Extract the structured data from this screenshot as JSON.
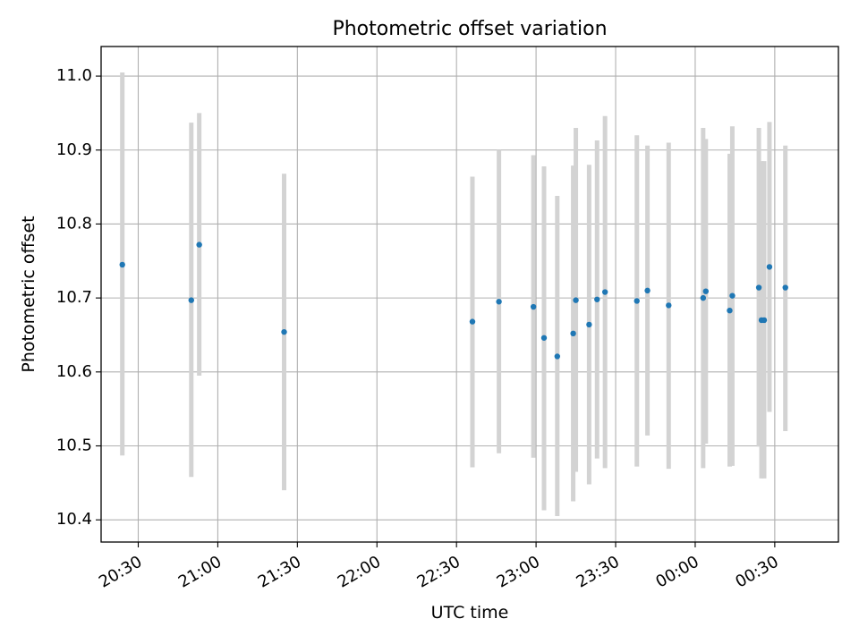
{
  "chart_data": {
    "type": "scatter",
    "title": "Photometric offset variation",
    "xlabel": "UTC time",
    "ylabel": "Photometric offset",
    "xlim": [
      "20:16",
      "00:54"
    ],
    "ylim": [
      10.37,
      11.04
    ],
    "x_ticks": [
      "20:30",
      "21:00",
      "21:30",
      "22:00",
      "22:30",
      "23:00",
      "23:30",
      "00:00",
      "00:30"
    ],
    "y_ticks": [
      "10.4",
      "10.5",
      "10.6",
      "10.7",
      "10.8",
      "10.9",
      "11.0"
    ],
    "grid": true,
    "colors": {
      "marker": "#1f77b4",
      "errorbar": "#d3d3d3",
      "grid": "#b0b0b0"
    },
    "points": [
      {
        "x": "20:24",
        "y": 10.745,
        "low": 10.487,
        "high": 11.005
      },
      {
        "x": "20:50",
        "y": 10.697,
        "low": 10.458,
        "high": 10.937
      },
      {
        "x": "20:53",
        "y": 10.772,
        "low": 10.595,
        "high": 10.95
      },
      {
        "x": "21:25",
        "y": 10.654,
        "low": 10.44,
        "high": 10.868
      },
      {
        "x": "22:36",
        "y": 10.668,
        "low": 10.471,
        "high": 10.864
      },
      {
        "x": "22:46",
        "y": 10.695,
        "low": 10.49,
        "high": 10.9
      },
      {
        "x": "22:59",
        "y": 10.688,
        "low": 10.484,
        "high": 10.893
      },
      {
        "x": "23:03",
        "y": 10.646,
        "low": 10.413,
        "high": 10.878
      },
      {
        "x": "23:08",
        "y": 10.621,
        "low": 10.405,
        "high": 10.838
      },
      {
        "x": "23:14",
        "y": 10.652,
        "low": 10.425,
        "high": 10.879
      },
      {
        "x": "23:15",
        "y": 10.697,
        "low": 10.465,
        "high": 10.93
      },
      {
        "x": "23:20",
        "y": 10.664,
        "low": 10.448,
        "high": 10.88
      },
      {
        "x": "23:23",
        "y": 10.698,
        "low": 10.483,
        "high": 10.913
      },
      {
        "x": "23:26",
        "y": 10.708,
        "low": 10.47,
        "high": 10.946
      },
      {
        "x": "23:38",
        "y": 10.696,
        "low": 10.472,
        "high": 10.92
      },
      {
        "x": "23:42",
        "y": 10.71,
        "low": 10.514,
        "high": 10.906
      },
      {
        "x": "23:50",
        "y": 10.69,
        "low": 10.469,
        "high": 10.91
      },
      {
        "x": "00:03",
        "y": 10.7,
        "low": 10.47,
        "high": 10.93
      },
      {
        "x": "00:04",
        "y": 10.709,
        "low": 10.503,
        "high": 10.915
      },
      {
        "x": "00:13",
        "y": 10.683,
        "low": 10.472,
        "high": 10.895
      },
      {
        "x": "00:14",
        "y": 10.703,
        "low": 10.473,
        "high": 10.932
      },
      {
        "x": "00:24",
        "y": 10.714,
        "low": 10.499,
        "high": 10.93
      },
      {
        "x": "00:25",
        "y": 10.67,
        "low": 10.456,
        "high": 10.885
      },
      {
        "x": "00:26",
        "y": 10.67,
        "low": 10.456,
        "high": 10.885
      },
      {
        "x": "00:28",
        "y": 10.742,
        "low": 10.546,
        "high": 10.938
      },
      {
        "x": "00:34",
        "y": 10.714,
        "low": 10.52,
        "high": 10.906
      }
    ]
  }
}
